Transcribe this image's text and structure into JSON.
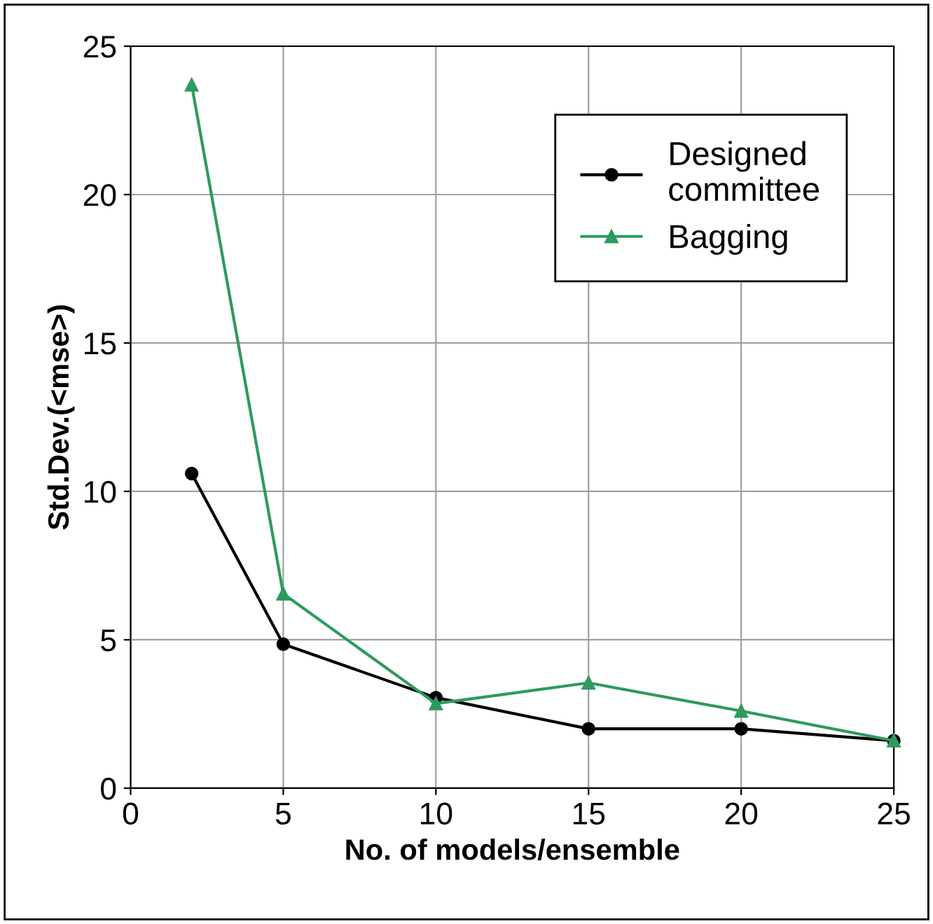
{
  "chart_data": {
    "type": "line",
    "xlabel": "No. of models/ensemble",
    "ylabel": "Std.Dev.(<mse>)",
    "x": [
      2,
      5,
      10,
      15,
      20,
      25
    ],
    "series": [
      {
        "name": "Designed committee",
        "color": "#000000",
        "marker": "circle",
        "values": [
          10.6,
          4.85,
          3.05,
          2.0,
          2.0,
          1.6
        ]
      },
      {
        "name": "Bagging",
        "color": "#2e9a5e",
        "marker": "triangle",
        "values": [
          23.7,
          6.55,
          2.85,
          3.55,
          2.6,
          1.6
        ]
      }
    ],
    "xlim": [
      0,
      25
    ],
    "ylim": [
      0,
      25
    ],
    "xticks": [
      0,
      5,
      10,
      15,
      20,
      25
    ],
    "yticks": [
      0,
      5,
      10,
      15,
      20,
      25
    ],
    "grid": true,
    "legend": "top right",
    "line_style": "solid"
  }
}
